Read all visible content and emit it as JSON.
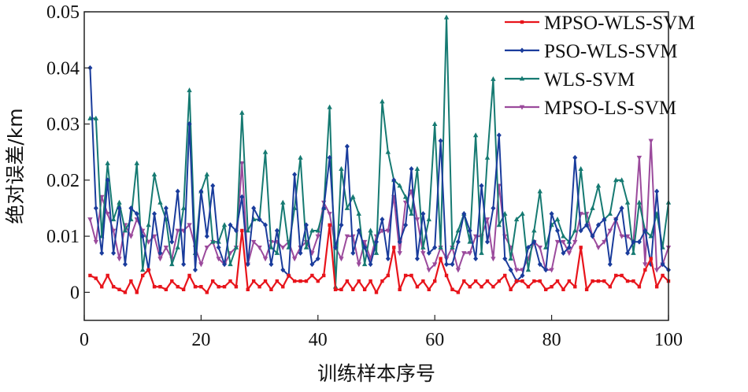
{
  "chart_data": {
    "type": "line",
    "title": "",
    "xlabel": "训练样本序号",
    "ylabel": "绝对误差/km",
    "xlim": [
      0,
      100
    ],
    "ylim": [
      -0.005,
      0.05
    ],
    "x_ticks": [
      0,
      20,
      40,
      60,
      80,
      100
    ],
    "y_ticks": [
      0,
      0.01,
      0.02,
      0.03,
      0.04,
      0.05
    ],
    "y_tick_labels": [
      "0",
      "0.01",
      "0.02",
      "0.03",
      "0.04",
      "0.05"
    ],
    "grid": false,
    "legend_position": "top-right",
    "x": [
      1,
      2,
      3,
      4,
      5,
      6,
      7,
      8,
      9,
      10,
      11,
      12,
      13,
      14,
      15,
      16,
      17,
      18,
      19,
      20,
      21,
      22,
      23,
      24,
      25,
      26,
      27,
      28,
      29,
      30,
      31,
      32,
      33,
      34,
      35,
      36,
      37,
      38,
      39,
      40,
      41,
      42,
      43,
      44,
      45,
      46,
      47,
      48,
      49,
      50,
      51,
      52,
      53,
      54,
      55,
      56,
      57,
      58,
      59,
      60,
      61,
      62,
      63,
      64,
      65,
      66,
      67,
      68,
      69,
      70,
      71,
      72,
      73,
      74,
      75,
      76,
      77,
      78,
      79,
      80,
      81,
      82,
      83,
      84,
      85,
      86,
      87,
      88,
      89,
      90,
      91,
      92,
      93,
      94,
      95,
      96,
      97,
      98,
      99,
      100
    ],
    "series": [
      {
        "name": "MPSO-WLS-SVM",
        "color": "#e8141b",
        "marker": "square",
        "values": [
          0.003,
          0.0025,
          0.001,
          0.003,
          0.001,
          0.0005,
          0,
          0.002,
          0,
          0.003,
          0.004,
          0.001,
          0.001,
          0.0005,
          0.002,
          0.001,
          0.0005,
          0.003,
          0.001,
          0.001,
          0,
          0.002,
          0.001,
          0.001,
          0.002,
          0.001,
          0.011,
          0.0005,
          0.002,
          0.001,
          0.002,
          0.0005,
          0.002,
          0.001,
          0.003,
          0.002,
          0.002,
          0.002,
          0.003,
          0.002,
          0.003,
          0.012,
          0.0005,
          0.0005,
          0.002,
          0.0005,
          0.002,
          0.0005,
          0.002,
          0,
          0.002,
          0.003,
          0.008,
          0.0005,
          0.003,
          0.003,
          0.001,
          0.002,
          0.0005,
          0.002,
          0.006,
          0.003,
          0.0005,
          0,
          0.002,
          0.001,
          0.002,
          0.001,
          0.002,
          0.001,
          0.002,
          0.003,
          0.0005,
          0.002,
          0.002,
          0.001,
          0.002,
          0.002,
          0.0005,
          0.001,
          0.002,
          0.0005,
          0.002,
          0.001,
          0.008,
          0.0005,
          0.002,
          0.002,
          0.002,
          0.001,
          0.003,
          0.003,
          0.002,
          0.002,
          0.001,
          0.004,
          0.006,
          0.001,
          0.003,
          0.002
        ]
      },
      {
        "name": "PSO-WLS-SVM",
        "color": "#1a3c9c",
        "marker": "diamond",
        "values": [
          0.04,
          0.015,
          0.007,
          0.02,
          0.007,
          0.015,
          0.005,
          0.015,
          0.014,
          0.01,
          0.004,
          0.014,
          0.007,
          0.015,
          0.009,
          0.018,
          0.005,
          0.03,
          0.004,
          0.018,
          0.01,
          0.019,
          0.008,
          0.005,
          0.012,
          0.011,
          0.017,
          0.005,
          0.015,
          0.013,
          0.012,
          0.005,
          0.011,
          0.004,
          0.003,
          0.021,
          0.007,
          0.012,
          0.005,
          0.006,
          0.015,
          0.024,
          0.008,
          0.012,
          0.026,
          0.007,
          0.011,
          0.008,
          0.005,
          0.009,
          0.013,
          0.006,
          0.02,
          0.009,
          0.012,
          0.022,
          0.006,
          0.014,
          0.007,
          0.008,
          0.027,
          0.005,
          0.005,
          0.009,
          0.014,
          0.011,
          0.006,
          0.019,
          0.009,
          0.015,
          0.028,
          0.006,
          0.004,
          0.002,
          0.003,
          0.008,
          0.009,
          0.005,
          0.004,
          0.014,
          0.011,
          0.007,
          0.008,
          0.024,
          0.011,
          0.012,
          0.01,
          0.012,
          0.013,
          0.005,
          0.013,
          0.015,
          0.007,
          0.009,
          0.009,
          0.011,
          0.005,
          0.018,
          0.005,
          0.004
        ]
      },
      {
        "name": "WLS-SVM",
        "color": "#167a72",
        "marker": "triangle",
        "values": [
          0.031,
          0.031,
          0.01,
          0.023,
          0.013,
          0.016,
          0.011,
          0.013,
          0.023,
          0.004,
          0.012,
          0.021,
          0.016,
          0.013,
          0.005,
          0.008,
          0.015,
          0.036,
          0.007,
          0.018,
          0.021,
          0.009,
          0.009,
          0.012,
          0.005,
          0.008,
          0.032,
          0.011,
          0.013,
          0.013,
          0.025,
          0.008,
          0.007,
          0.016,
          0.008,
          0.015,
          0.024,
          0.008,
          0.011,
          0.011,
          0.015,
          0.033,
          0.001,
          0.022,
          0.015,
          0.017,
          0.014,
          0.005,
          0.011,
          0.007,
          0.034,
          0.025,
          0.02,
          0.019,
          0.017,
          0.014,
          0.022,
          0.008,
          0.013,
          0.03,
          0.008,
          0.049,
          0.008,
          0.011,
          0.014,
          0.009,
          0.028,
          0.007,
          0.024,
          0.038,
          0.012,
          0.014,
          0.006,
          0.013,
          0.014,
          0.004,
          0.011,
          0.018,
          0.008,
          0.012,
          0.013,
          0.01,
          0.009,
          0.011,
          0.022,
          0.012,
          0.015,
          0.019,
          0.013,
          0.014,
          0.02,
          0.02,
          0.016,
          0.007,
          0.016,
          0.011,
          0.01,
          0.014,
          0.008,
          0.016
        ]
      },
      {
        "name": "MPSO-LS-SVM",
        "color": "#9b4a9c",
        "marker": "inverted-triangle",
        "values": [
          0.013,
          0.009,
          0.017,
          0.014,
          0.011,
          0.006,
          0.012,
          0.01,
          0.013,
          0.011,
          0.009,
          0.01,
          0.006,
          0.008,
          0.006,
          0.011,
          0.011,
          0.012,
          0.008,
          0.005,
          0.008,
          0.009,
          0.006,
          0.005,
          0.007,
          0.008,
          0.023,
          0.005,
          0.009,
          0.008,
          0.006,
          0.009,
          0.009,
          0.008,
          0.009,
          0.006,
          0.008,
          0.009,
          0.007,
          0.01,
          0.016,
          0.014,
          0.008,
          0.006,
          0.01,
          0.01,
          0.005,
          0.009,
          0.006,
          0.01,
          0.011,
          0.011,
          0.017,
          0.007,
          0.016,
          0.018,
          0.013,
          0.007,
          0.004,
          0.005,
          0.008,
          0.006,
          0.008,
          0.004,
          0.007,
          0.007,
          0.01,
          0.01,
          0.013,
          0.006,
          0.019,
          0.01,
          0.008,
          0.004,
          0.004,
          0.006,
          0.009,
          0.008,
          0.004,
          0.004,
          0.009,
          0.009,
          0.007,
          0.009,
          0.014,
          0.014,
          0.01,
          0.008,
          0.009,
          0.011,
          0.013,
          0.01,
          0.01,
          0.009,
          0.024,
          0.005,
          0.027,
          0.004,
          0.005,
          0.008
        ]
      }
    ]
  }
}
